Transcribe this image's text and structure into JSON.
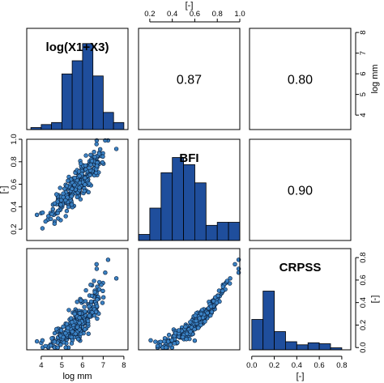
{
  "chart_data": {
    "type": "scatter-matrix",
    "variables": [
      "log(X1+X3)",
      "BFI",
      "CRPSS"
    ],
    "units": [
      "log mm",
      "[-]",
      "[-]"
    ],
    "axes": {
      "bottom": [
        {
          "label": "log mm",
          "ticks": [
            "4",
            "5",
            "6",
            "7",
            "8"
          ],
          "range": [
            3.3,
            8.2
          ]
        },
        {
          "label": "",
          "ticks": [],
          "range": [
            0.1,
            1.0
          ]
        },
        {
          "label": "[-]",
          "ticks": [
            "0.0",
            "0.2",
            "0.4",
            "0.6",
            "0.8"
          ],
          "range": [
            -0.02,
            0.88
          ]
        }
      ],
      "top": [
        {
          "label": "",
          "ticks": [],
          "range": [
            3.3,
            8.2
          ]
        },
        {
          "label": "[-]",
          "ticks": [
            "0.2",
            "0.4",
            "0.6",
            "0.8",
            "1.0"
          ],
          "range": [
            0.1,
            1.0
          ]
        },
        {
          "label": "",
          "ticks": [],
          "range": [
            -0.02,
            0.88
          ]
        }
      ],
      "left": [
        {
          "label": "",
          "ticks": [],
          "range": [
            3.3,
            8.2
          ]
        },
        {
          "label": "[-]",
          "ticks": [
            "0.2",
            "0.4",
            "0.6",
            "0.8",
            "1.0"
          ],
          "range": [
            0.1,
            1.0
          ]
        },
        {
          "label": "",
          "ticks": [],
          "range": [
            -0.02,
            0.88
          ]
        }
      ],
      "right": [
        {
          "label": "log mm",
          "ticks": [
            "4",
            "5",
            "6",
            "7",
            "8"
          ],
          "range": [
            3.3,
            8.2
          ]
        },
        {
          "label": "",
          "ticks": [],
          "range": [
            0.1,
            1.0
          ]
        },
        {
          "label": "[-]",
          "ticks": [
            "0.0",
            "0.2",
            "0.4",
            "0.6",
            "0.8"
          ],
          "range": [
            -0.02,
            0.88
          ]
        }
      ]
    },
    "correlations": [
      {
        "row": 0,
        "col": 1,
        "value": "0.87"
      },
      {
        "row": 0,
        "col": 2,
        "value": "0.80"
      },
      {
        "row": 1,
        "col": 2,
        "value": "0.90"
      }
    ],
    "histograms": [
      {
        "variable": "log(X1+X3)",
        "bin_edges": [
          3.5,
          4,
          4.5,
          5,
          5.5,
          6,
          6.5,
          7,
          7.5,
          8
        ],
        "heights": [
          0.02,
          0.05,
          0.07,
          0.55,
          0.68,
          0.85,
          0.53,
          0.17,
          0.07
        ]
      },
      {
        "variable": "BFI",
        "bin_edges": [
          0.1,
          0.2,
          0.3,
          0.4,
          0.5,
          0.6,
          0.7,
          0.8,
          0.9,
          1.0
        ],
        "heights": [
          0.06,
          0.32,
          0.67,
          0.82,
          0.75,
          0.57,
          0.15,
          0.18,
          0.18
        ]
      },
      {
        "variable": "CRPSS",
        "bin_edges": [
          0.0,
          0.1,
          0.2,
          0.3,
          0.4,
          0.5,
          0.6,
          0.7,
          0.8
        ],
        "heights": [
          0.3,
          0.58,
          0.18,
          0.08,
          0.05,
          0.07,
          0.06,
          0.02
        ]
      }
    ],
    "scatter": {
      "n_points": 300,
      "x_log_range": [
        3.5,
        8.0
      ],
      "bfi_range": [
        0.12,
        0.99
      ],
      "crpss_range": [
        0.0,
        0.84
      ]
    }
  }
}
